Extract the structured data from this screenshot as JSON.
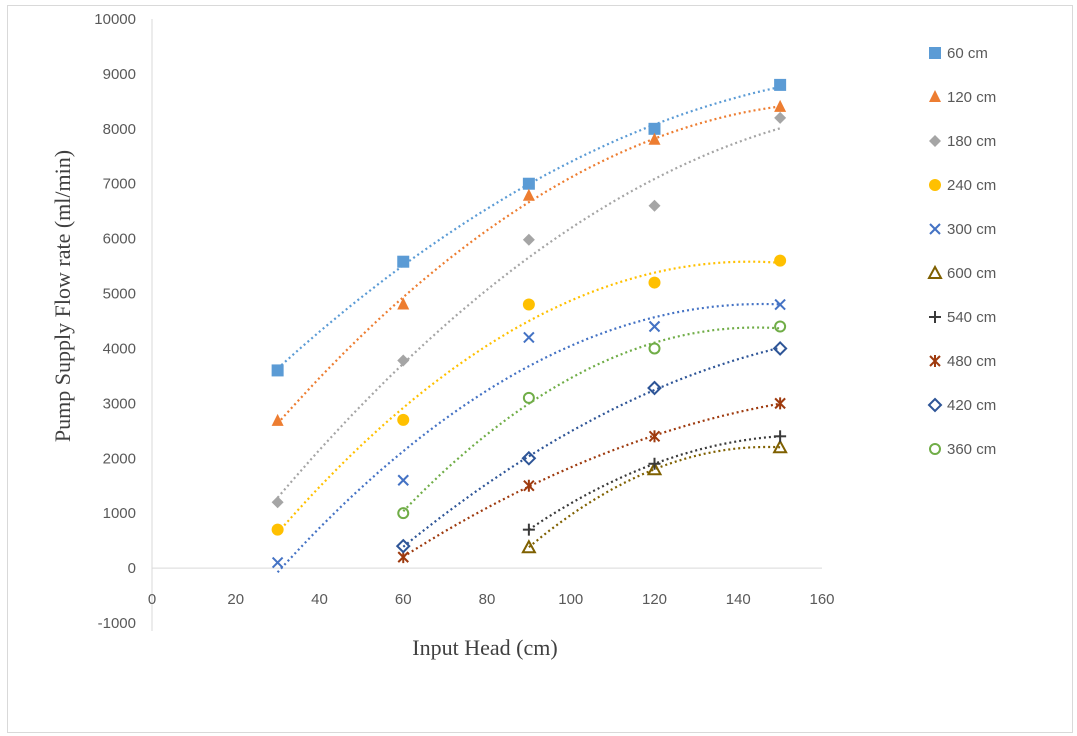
{
  "chart_data": {
    "type": "scatter",
    "xlabel": "Input Head (cm)",
    "ylabel": "Pump Supply Flow rate (ml/min)",
    "xlim": [
      0,
      160
    ],
    "ylim": [
      -1000,
      10000
    ],
    "x_ticks": [
      "0",
      "20",
      "40",
      "60",
      "80",
      "100",
      "120",
      "140",
      "160"
    ],
    "y_ticks": [
      "-1000",
      "0",
      "1000",
      "2000",
      "3000",
      "4000",
      "5000",
      "6000",
      "7000",
      "8000",
      "9000",
      "10000"
    ],
    "grid": false,
    "legend_position": "right",
    "trendlines": "dotted polynomial per series",
    "series": [
      {
        "name": "60 cm",
        "marker": "square",
        "color": "#5B9BD5",
        "points": [
          [
            30,
            3600
          ],
          [
            60,
            5580
          ],
          [
            90,
            7000
          ],
          [
            120,
            8000
          ],
          [
            150,
            8800
          ]
        ]
      },
      {
        "name": "120 cm",
        "marker": "triangle",
        "color": "#ED7D31",
        "points": [
          [
            30,
            2680
          ],
          [
            60,
            4800
          ],
          [
            90,
            6780
          ],
          [
            120,
            7800
          ],
          [
            150,
            8400
          ]
        ]
      },
      {
        "name": "180 cm",
        "marker": "diamond",
        "color": "#A5A5A5",
        "points": [
          [
            30,
            1200
          ],
          [
            60,
            3780
          ],
          [
            90,
            5980
          ],
          [
            120,
            6600
          ],
          [
            150,
            8200
          ]
        ]
      },
      {
        "name": "240 cm",
        "marker": "circle",
        "color": "#FFC000",
        "points": [
          [
            30,
            700
          ],
          [
            60,
            2700
          ],
          [
            90,
            4800
          ],
          [
            120,
            5200
          ],
          [
            150,
            5600
          ]
        ]
      },
      {
        "name": "300 cm",
        "marker": "x",
        "color": "#4472C4",
        "points": [
          [
            30,
            100
          ],
          [
            60,
            1600
          ],
          [
            90,
            4200
          ],
          [
            120,
            4400
          ],
          [
            150,
            4800
          ]
        ]
      },
      {
        "name": "600 cm",
        "marker": "triangle-open",
        "color": "#7F6000",
        "points": [
          [
            90,
            380
          ],
          [
            120,
            1800
          ],
          [
            150,
            2200
          ]
        ]
      },
      {
        "name": "540 cm",
        "marker": "plus",
        "color": "#3A3A3A",
        "points": [
          [
            90,
            700
          ],
          [
            120,
            1900
          ],
          [
            150,
            2400
          ]
        ]
      },
      {
        "name": "480 cm",
        "marker": "star",
        "color": "#9E3A0E",
        "points": [
          [
            60,
            200
          ],
          [
            90,
            1500
          ],
          [
            120,
            2400
          ],
          [
            150,
            3000
          ]
        ]
      },
      {
        "name": "420 cm",
        "marker": "diamond-open",
        "color": "#2E5597",
        "points": [
          [
            60,
            400
          ],
          [
            90,
            2000
          ],
          [
            120,
            3280
          ],
          [
            150,
            4000
          ]
        ]
      },
      {
        "name": "360 cm",
        "marker": "circle-open",
        "color": "#70AD47",
        "points": [
          [
            60,
            1000
          ],
          [
            90,
            3100
          ],
          [
            120,
            4000
          ],
          [
            150,
            4400
          ]
        ]
      }
    ]
  }
}
